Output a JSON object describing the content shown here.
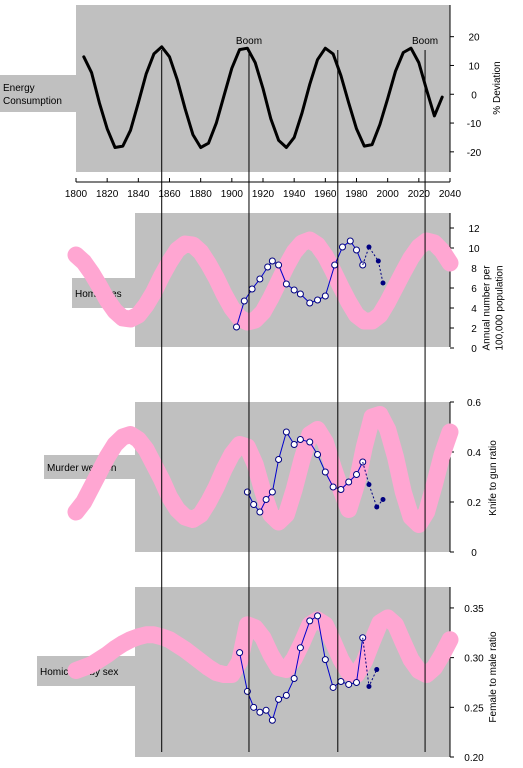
{
  "chart_data": [
    {
      "type": "line",
      "label_box": [
        "Energy",
        "Consumption"
      ],
      "ylabel": "% Deviation",
      "xlim": [
        1800,
        2040
      ],
      "ylim": [
        -27,
        31
      ],
      "x_ticks": [
        1800,
        1820,
        1840,
        1860,
        1880,
        1900,
        1920,
        1940,
        1960,
        1980,
        2000,
        2020,
        2040
      ],
      "y_ticks": [
        20,
        10,
        0,
        -10,
        -20
      ],
      "annotations": [
        {
          "text": "Boom",
          "x": 1911
        },
        {
          "text": "Boom",
          "x": 2024
        }
      ],
      "series": [
        {
          "x": [
            1805,
            1810,
            1815,
            1820,
            1825,
            1830,
            1835,
            1840,
            1845,
            1850,
            1855,
            1860,
            1865,
            1870,
            1875,
            1880,
            1885,
            1890,
            1895,
            1900,
            1905,
            1910,
            1915,
            1920,
            1925,
            1930,
            1935,
            1940,
            1945,
            1950,
            1955,
            1960,
            1965,
            1970,
            1975,
            1980,
            1985,
            1990,
            1995,
            2000,
            2005,
            2010,
            2015,
            2020,
            2025,
            2030,
            2035
          ],
          "y": [
            13,
            7.5,
            -3,
            -12,
            -18.5,
            -18,
            -12.5,
            -3,
            7,
            14,
            16.5,
            13,
            5,
            -5,
            -14,
            -18.5,
            -17,
            -10,
            -0.5,
            9,
            15.5,
            16,
            11,
            2,
            -8.5,
            -16,
            -18.5,
            -15,
            -6.5,
            3.5,
            12,
            16,
            14,
            6.5,
            -3,
            -12,
            -18,
            -17.5,
            -10.5,
            -1.5,
            8,
            14.5,
            16,
            11,
            1.5,
            -7.5,
            -1
          ]
        }
      ]
    },
    {
      "type": "line",
      "label_box": [
        "Homicides"
      ],
      "ylabel": [
        "Annual number per",
        "100,000 population"
      ],
      "ylim": [
        0,
        13.5
      ],
      "y_ticks": [
        0,
        2,
        4,
        6,
        8,
        10,
        12
      ],
      "series": [
        {
          "style": "band",
          "x": [
            1800,
            1805,
            1810,
            1815,
            1820,
            1825,
            1830,
            1835,
            1840,
            1845,
            1850,
            1855,
            1860,
            1865,
            1870,
            1875,
            1880,
            1885,
            1890,
            1895,
            1900,
            1905,
            1910,
            1915,
            1920,
            1925,
            1930,
            1935,
            1940,
            1945,
            1950,
            1955,
            1960,
            1965,
            1970,
            1975,
            1980,
            1985,
            1990,
            1995,
            2000,
            2005,
            2010,
            2015,
            2020,
            2025,
            2030,
            2035,
            2040
          ],
          "y": [
            9.3,
            8.6,
            7.5,
            6.2,
            4.8,
            3.7,
            3,
            2.9,
            3.3,
            4.3,
            5.6,
            7.2,
            8.6,
            9.8,
            10.4,
            10.3,
            9.6,
            8.4,
            7,
            5.4,
            4,
            3,
            2.6,
            2.8,
            3.6,
            5,
            6.6,
            8.2,
            9.6,
            10.5,
            10.8,
            10.3,
            9.2,
            7.7,
            6.1,
            4.6,
            3.3,
            2.7,
            2.7,
            3.3,
            4.6,
            6.1,
            7.6,
            9,
            10.1,
            10.7,
            10.5,
            9.7,
            8.5
          ]
        },
        {
          "style": "observed",
          "x": [
            1903,
            1908,
            1913,
            1918,
            1923,
            1926,
            1930,
            1935,
            1940,
            1944,
            1950,
            1955,
            1960,
            1966,
            1971,
            1976,
            1980,
            1984
          ],
          "y": [
            2.1,
            4.7,
            5.9,
            6.9,
            8.1,
            8.7,
            8.3,
            6.4,
            5.8,
            5.4,
            4.5,
            4.8,
            5.2,
            8.3,
            10.1,
            10.7,
            9.8,
            8.3
          ]
        },
        {
          "style": "projected",
          "x": [
            1984,
            1988,
            1994,
            1997
          ],
          "y": [
            8.3,
            10.1,
            8.7,
            6.5
          ]
        }
      ]
    },
    {
      "type": "line",
      "label_box": [
        "Murder weapon"
      ],
      "ylabel": "Knife to gun ratio",
      "ylim": [
        0,
        0.6
      ],
      "y_ticks": [
        0,
        0.2,
        0.4,
        0.6
      ],
      "series": [
        {
          "style": "band",
          "x": [
            1800,
            1805,
            1810,
            1815,
            1820,
            1825,
            1830,
            1835,
            1840,
            1845,
            1850,
            1855,
            1860,
            1865,
            1870,
            1875,
            1880,
            1885,
            1890,
            1895,
            1900,
            1905,
            1910,
            1915,
            1920,
            1925,
            1930,
            1935,
            1940,
            1945,
            1950,
            1955,
            1960,
            1965,
            1970,
            1975,
            1980,
            1985,
            1990,
            1995,
            2000,
            2005,
            2010,
            2015,
            2020,
            2025,
            2030,
            2035,
            2040
          ],
          "y": [
            0.16,
            0.2,
            0.26,
            0.32,
            0.38,
            0.43,
            0.46,
            0.47,
            0.45,
            0.41,
            0.35,
            0.29,
            0.22,
            0.17,
            0.14,
            0.13,
            0.15,
            0.2,
            0.26,
            0.33,
            0.39,
            0.43,
            0.42,
            0.35,
            0.24,
            0.15,
            0.12,
            0.15,
            0.25,
            0.37,
            0.47,
            0.49,
            0.44,
            0.34,
            0.25,
            0.17,
            0.27,
            0.42,
            0.54,
            0.55,
            0.49,
            0.38,
            0.24,
            0.14,
            0.11,
            0.16,
            0.27,
            0.39,
            0.48
          ]
        },
        {
          "style": "observed",
          "x": [
            1910,
            1914,
            1918,
            1922,
            1926,
            1930,
            1935,
            1940,
            1944,
            1950,
            1955,
            1960,
            1965,
            1970,
            1975,
            1980,
            1984
          ],
          "y": [
            0.24,
            0.19,
            0.16,
            0.21,
            0.24,
            0.37,
            0.48,
            0.43,
            0.45,
            0.44,
            0.39,
            0.32,
            0.26,
            0.25,
            0.28,
            0.31,
            0.36
          ]
        },
        {
          "style": "projected",
          "x": [
            1984,
            1988,
            1993,
            1997
          ],
          "y": [
            0.36,
            0.27,
            0.18,
            0.21
          ]
        }
      ]
    },
    {
      "type": "line",
      "label_box": [
        "Homicides by sex"
      ],
      "ylabel": "Female to male ratio",
      "ylim": [
        0.2,
        0.36
      ],
      "y_ticks": [
        0.2,
        0.25,
        0.3,
        0.35
      ],
      "series": [
        {
          "style": "band",
          "x": [
            1800,
            1805,
            1810,
            1815,
            1820,
            1825,
            1830,
            1835,
            1840,
            1845,
            1850,
            1855,
            1860,
            1865,
            1870,
            1875,
            1880,
            1885,
            1890,
            1895,
            1900,
            1905,
            1910,
            1915,
            1920,
            1925,
            1930,
            1935,
            1940,
            1945,
            1950,
            1955,
            1960,
            1965,
            1970,
            1975,
            1980,
            1985,
            1990,
            1995,
            2000,
            2005,
            2010,
            2015,
            2020,
            2025,
            2030,
            2035,
            2040
          ],
          "y": [
            0.287,
            0.29,
            0.293,
            0.298,
            0.303,
            0.309,
            0.314,
            0.318,
            0.321,
            0.323,
            0.323,
            0.321,
            0.318,
            0.313,
            0.308,
            0.302,
            0.296,
            0.29,
            0.285,
            0.283,
            0.283,
            0.296,
            0.333,
            0.33,
            0.32,
            0.303,
            0.29,
            0.288,
            0.299,
            0.315,
            0.333,
            0.338,
            0.333,
            0.316,
            0.298,
            0.285,
            0.283,
            0.296,
            0.316,
            0.335,
            0.34,
            0.333,
            0.315,
            0.298,
            0.287,
            0.283,
            0.29,
            0.303,
            0.318
          ]
        },
        {
          "style": "observed",
          "x": [
            1905,
            1910,
            1914,
            1918,
            1922,
            1926,
            1930,
            1935,
            1940,
            1944,
            1950,
            1955,
            1960,
            1965,
            1970,
            1975,
            1980,
            1984
          ],
          "y": [
            0.305,
            0.266,
            0.25,
            0.245,
            0.247,
            0.237,
            0.258,
            0.262,
            0.279,
            0.31,
            0.337,
            0.342,
            0.298,
            0.27,
            0.276,
            0.273,
            0.275,
            0.32
          ]
        },
        {
          "style": "projected",
          "x": [
            1984,
            1988,
            1993
          ],
          "y": [
            0.32,
            0.271,
            0.288
          ]
        }
      ]
    }
  ],
  "vlines_x": [
    1855,
    1911,
    1968,
    2024
  ]
}
